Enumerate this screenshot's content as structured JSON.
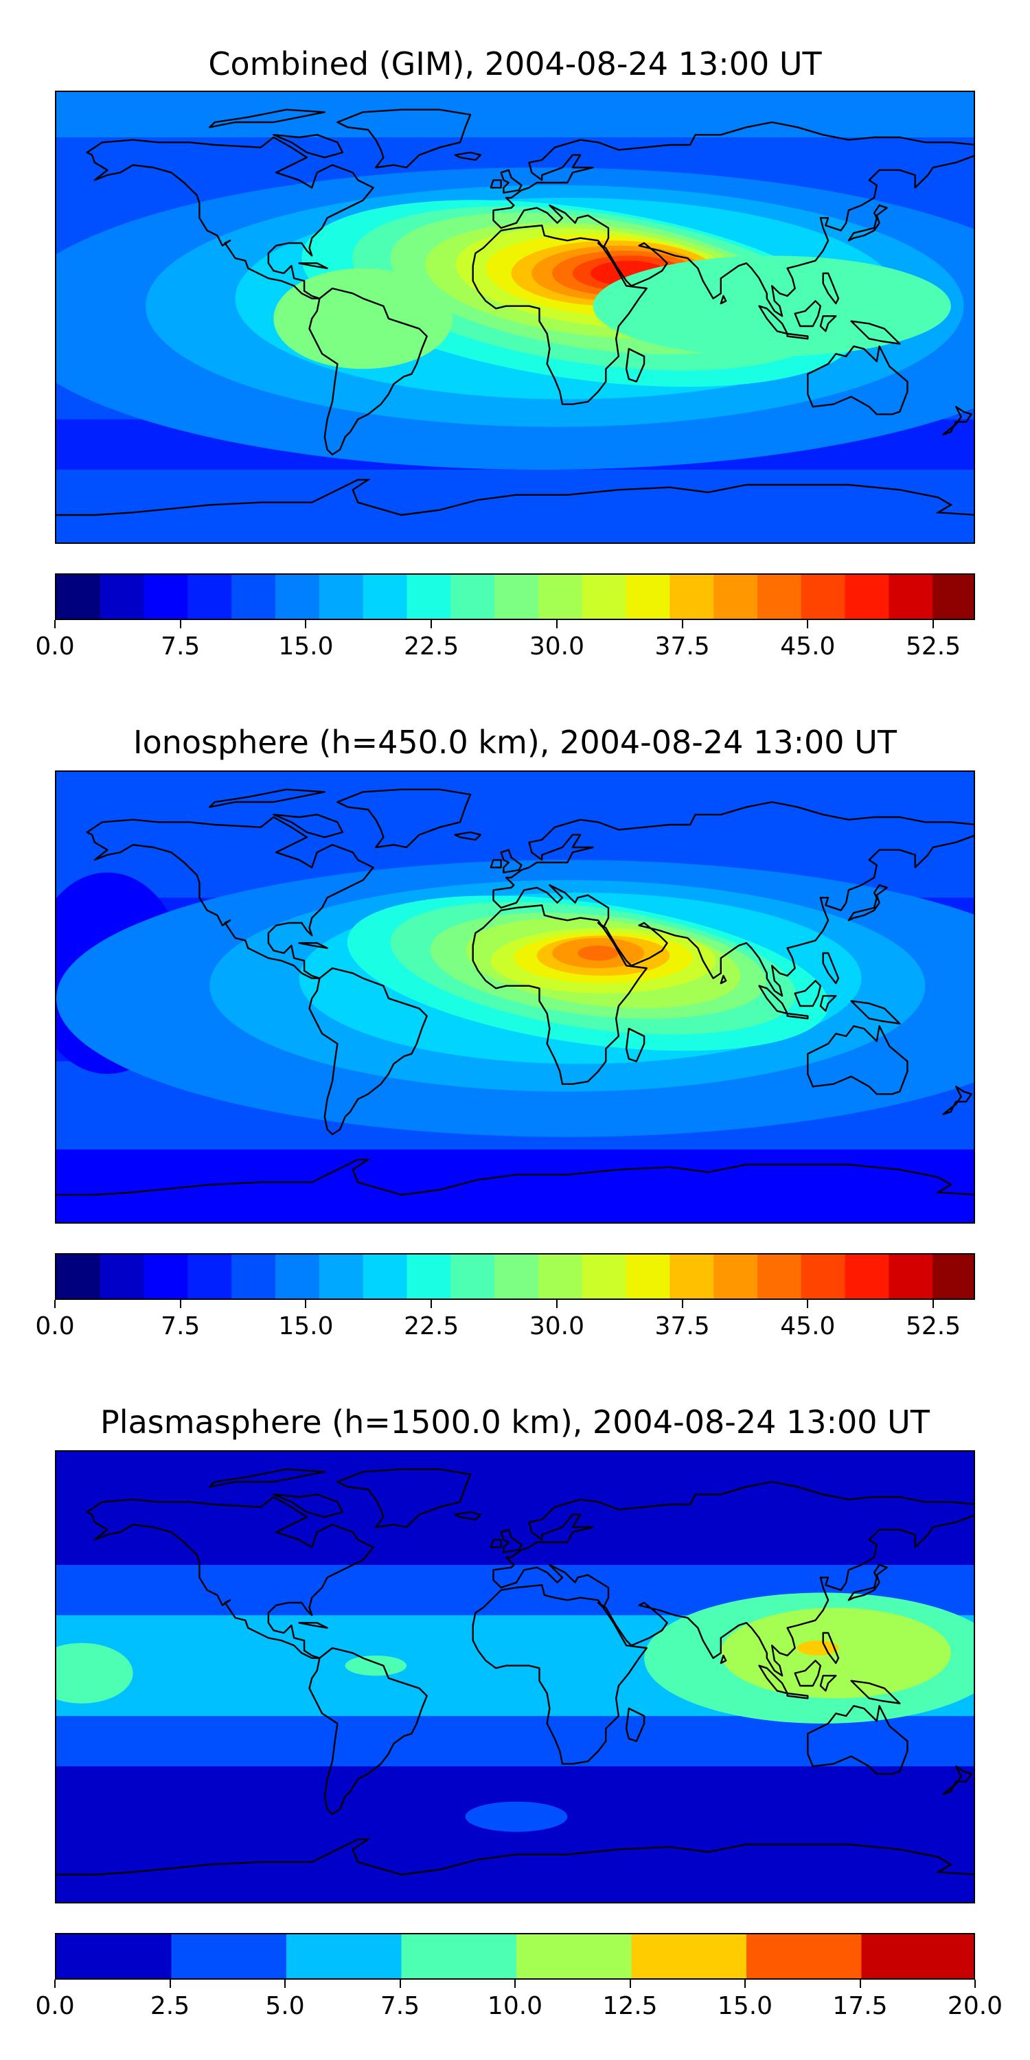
{
  "panels": [
    {
      "title": "Combined (GIM), 2004-08-24 13:00 UT",
      "colorbar": {
        "ticks": [
          "0.0",
          "7.5",
          "15.0",
          "22.5",
          "30.0",
          "37.5",
          "45.0",
          "52.5"
        ],
        "range": [
          0,
          55
        ],
        "step": 2.5,
        "colors": [
          "#00007f",
          "#0000c8",
          "#0000ff",
          "#0020ff",
          "#0050ff",
          "#0080ff",
          "#00a8ff",
          "#00d4ff",
          "#1affe4",
          "#4cffb2",
          "#7cff82",
          "#a4ff52",
          "#ccff2a",
          "#f0f400",
          "#ffc000",
          "#ff9800",
          "#ff6e00",
          "#ff4400",
          "#ff1a00",
          "#d40000",
          "#8f0000"
        ]
      }
    },
    {
      "title": "Ionosphere  (h=450.0 km), 2004-08-24 13:00 UT",
      "colorbar": {
        "ticks": [
          "0.0",
          "7.5",
          "15.0",
          "22.5",
          "30.0",
          "37.5",
          "45.0",
          "52.5"
        ],
        "range": [
          0,
          55
        ],
        "step": 2.5,
        "colors": [
          "#00007f",
          "#0000c8",
          "#0000ff",
          "#0020ff",
          "#0050ff",
          "#0080ff",
          "#00a8ff",
          "#00d4ff",
          "#1affe4",
          "#4cffb2",
          "#7cff82",
          "#a4ff52",
          "#ccff2a",
          "#f0f400",
          "#ffc000",
          "#ff9800",
          "#ff6e00",
          "#ff4400",
          "#ff1a00",
          "#d40000",
          "#8f0000"
        ]
      }
    },
    {
      "title": "Plasmasphere (h=1500.0 km), 2004-08-24 13:00 UT",
      "colorbar": {
        "ticks": [
          "0.0",
          "2.5",
          "5.0",
          "7.5",
          "10.0",
          "12.5",
          "15.0",
          "17.5",
          "20.0"
        ],
        "range": [
          0,
          20
        ],
        "step": 2.5,
        "colors": [
          "#0000c8",
          "#0050ff",
          "#00c0ff",
          "#4cffb2",
          "#a4ff52",
          "#ffcc00",
          "#ff5a00",
          "#c80000"
        ]
      }
    }
  ]
}
